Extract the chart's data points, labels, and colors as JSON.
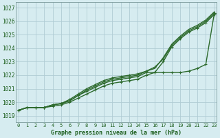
{
  "title": "Graphe pression niveau de la mer (hPa)",
  "bg_color": "#d6ecf0",
  "grid_color": "#b0ccd4",
  "line_color": "#2d6a2d",
  "x_ticks": [
    0,
    1,
    2,
    3,
    4,
    5,
    6,
    7,
    8,
    9,
    10,
    11,
    12,
    13,
    14,
    15,
    16,
    17,
    18,
    19,
    20,
    21,
    22,
    23
  ],
  "y_ticks": [
    1019,
    1020,
    1021,
    1022,
    1023,
    1024,
    1025,
    1026,
    1027
  ],
  "ylim": [
    1018.5,
    1027.4
  ],
  "xlim": [
    -0.3,
    23.3
  ],
  "series": [
    {
      "y": [
        1019.4,
        1019.6,
        1019.6,
        1019.6,
        1019.7,
        1019.8,
        1020.0,
        1020.3,
        1020.6,
        1020.9,
        1021.2,
        1021.4,
        1021.5,
        1021.6,
        1021.7,
        1022.0,
        1022.2,
        1022.2,
        1022.2,
        1022.2,
        1022.3,
        1022.5,
        1022.8,
        1026.6
      ],
      "lw": 1.0,
      "ls": "-",
      "marker": "+",
      "ms": 3.5
    },
    {
      "y": [
        1019.4,
        1019.6,
        1019.6,
        1019.6,
        1019.8,
        1019.9,
        1020.1,
        1020.5,
        1020.8,
        1021.1,
        1021.4,
        1021.6,
        1021.7,
        1021.8,
        1021.9,
        1022.2,
        1022.2,
        1023.0,
        1024.1,
        1024.7,
        1025.2,
        1025.5,
        1025.9,
        1026.5
      ],
      "lw": 1.0,
      "ls": "-",
      "marker": "+",
      "ms": 3.5
    },
    {
      "y": [
        1019.4,
        1019.6,
        1019.6,
        1019.6,
        1019.8,
        1019.9,
        1020.2,
        1020.6,
        1021.0,
        1021.3,
        1021.6,
        1021.8,
        1021.9,
        1022.0,
        1022.1,
        1022.3,
        1022.6,
        1023.2,
        1024.2,
        1024.8,
        1025.3,
        1025.6,
        1026.0,
        1026.6
      ],
      "lw": 1.0,
      "ls": "-",
      "marker": "+",
      "ms": 3.5
    },
    {
      "y": [
        1019.4,
        1019.6,
        1019.6,
        1019.6,
        1019.8,
        1019.9,
        1020.1,
        1020.5,
        1020.9,
        1021.2,
        1021.5,
        1021.7,
        1021.8,
        1021.9,
        1022.0,
        1022.3,
        1022.5,
        1023.3,
        1024.3,
        1024.9,
        1025.4,
        1025.7,
        1026.1,
        1026.7
      ],
      "lw": 1.0,
      "ls": "-",
      "marker": null,
      "ms": 0
    }
  ]
}
